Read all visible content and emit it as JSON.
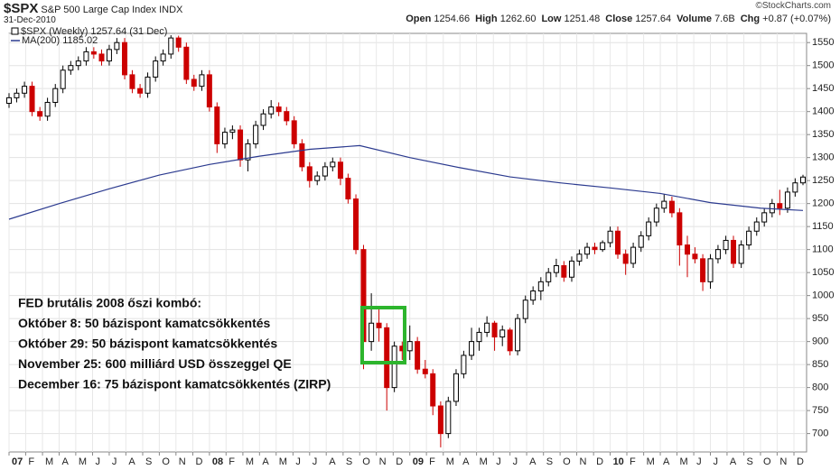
{
  "header": {
    "symbol": "$SPX",
    "name": "S&P 500 Large Cap Index",
    "exchange": "INDX",
    "date": "31-Dec-2010",
    "copyright": "©StockCharts.com",
    "quote": [
      {
        "label": "Open",
        "value": "1254.66"
      },
      {
        "label": "High",
        "value": "1262.60"
      },
      {
        "label": "Low",
        "value": "1251.48"
      },
      {
        "label": "Close",
        "value": "1257.64"
      },
      {
        "label": "Volume",
        "value": "7.6B"
      },
      {
        "label": "Chg",
        "value": "+0.87 (+0.07%)"
      }
    ]
  },
  "chart_data": {
    "type": "candlestick",
    "legend": [
      "$SPX (Weekly) 1257.64 (31 Dec)",
      "MA(200) 1185.02"
    ],
    "up_color": "#000000",
    "down_color": "#cc0000",
    "x": [
      2007,
      2007.038,
      2007.077,
      2007.115,
      2007.154,
      2007.192,
      2007.231,
      2007.269,
      2007.308,
      2007.346,
      2007.385,
      2007.423,
      2007.462,
      2007.5,
      2007.538,
      2007.577,
      2007.615,
      2007.654,
      2007.692,
      2007.731,
      2007.769,
      2007.808,
      2007.846,
      2007.885,
      2007.923,
      2007.962,
      2008,
      2008.038,
      2008.077,
      2008.115,
      2008.154,
      2008.192,
      2008.231,
      2008.269,
      2008.308,
      2008.346,
      2008.385,
      2008.423,
      2008.462,
      2008.5,
      2008.538,
      2008.577,
      2008.615,
      2008.654,
      2008.692,
      2008.731,
      2008.769,
      2008.808,
      2008.846,
      2008.885,
      2008.923,
      2008.962,
      2009,
      2009.038,
      2009.077,
      2009.115,
      2009.154,
      2009.192,
      2009.231,
      2009.269,
      2009.308,
      2009.346,
      2009.385,
      2009.423,
      2009.462,
      2009.5,
      2009.538,
      2009.577,
      2009.615,
      2009.654,
      2009.692,
      2009.731,
      2009.769,
      2009.808,
      2009.846,
      2009.885,
      2009.923,
      2009.962,
      2010,
      2010.038,
      2010.077,
      2010.115,
      2010.154,
      2010.192,
      2010.231,
      2010.269,
      2010.308,
      2010.346,
      2010.385,
      2010.423,
      2010.462,
      2010.5,
      2010.538,
      2010.577,
      2010.615,
      2010.654,
      2010.692,
      2010.731,
      2010.769,
      2010.808,
      2010.846,
      2010.885,
      2010.923,
      2010.962
    ],
    "open": [
      1418,
      1430,
      1440,
      1455,
      1400,
      1390,
      1420,
      1450,
      1490,
      1500,
      1510,
      1530,
      1525,
      1510,
      1535,
      1550,
      1480,
      1450,
      1440,
      1475,
      1510,
      1525,
      1560,
      1540,
      1470,
      1455,
      1480,
      1410,
      1330,
      1355,
      1360,
      1295,
      1330,
      1370,
      1395,
      1410,
      1400,
      1380,
      1330,
      1280,
      1250,
      1260,
      1280,
      1290,
      1255,
      1210,
      1100,
      900,
      940,
      930,
      800,
      890,
      880,
      900,
      840,
      830,
      760,
      700,
      770,
      830,
      870,
      900,
      920,
      940,
      910,
      925,
      880,
      950,
      990,
      1010,
      1030,
      1050,
      1065,
      1040,
      1075,
      1090,
      1105,
      1100,
      1115,
      1140,
      1090,
      1070,
      1105,
      1130,
      1160,
      1190,
      1205,
      1180,
      1110,
      1090,
      1080,
      1030,
      1080,
      1100,
      1120,
      1070,
      1110,
      1140,
      1160,
      1180,
      1200,
      1190,
      1225,
      1245
    ],
    "high": [
      1440,
      1450,
      1465,
      1465,
      1410,
      1430,
      1460,
      1500,
      1510,
      1520,
      1540,
      1540,
      1535,
      1545,
      1560,
      1560,
      1490,
      1460,
      1485,
      1520,
      1535,
      1566,
      1565,
      1550,
      1480,
      1490,
      1490,
      1420,
      1365,
      1370,
      1370,
      1340,
      1380,
      1405,
      1425,
      1420,
      1410,
      1390,
      1340,
      1290,
      1270,
      1290,
      1300,
      1300,
      1265,
      1220,
      1110,
      1005,
      970,
      940,
      900,
      900,
      935,
      910,
      860,
      840,
      770,
      780,
      840,
      880,
      930,
      930,
      955,
      945,
      935,
      930,
      960,
      1000,
      1020,
      1040,
      1060,
      1080,
      1075,
      1085,
      1100,
      1115,
      1115,
      1120,
      1150,
      1150,
      1100,
      1115,
      1140,
      1170,
      1200,
      1220,
      1215,
      1190,
      1130,
      1105,
      1090,
      1090,
      1110,
      1130,
      1130,
      1120,
      1150,
      1170,
      1190,
      1210,
      1230,
      1235,
      1255,
      1262.6
    ],
    "low": [
      1408,
      1420,
      1430,
      1390,
      1380,
      1380,
      1410,
      1440,
      1480,
      1490,
      1500,
      1515,
      1500,
      1500,
      1525,
      1470,
      1440,
      1430,
      1430,
      1465,
      1500,
      1515,
      1530,
      1460,
      1445,
      1445,
      1400,
      1310,
      1320,
      1340,
      1280,
      1270,
      1320,
      1360,
      1385,
      1390,
      1370,
      1320,
      1270,
      1235,
      1240,
      1250,
      1270,
      1240,
      1200,
      1090,
      840,
      880,
      900,
      750,
      790,
      860,
      860,
      830,
      820,
      740,
      670,
      690,
      760,
      820,
      860,
      880,
      910,
      880,
      890,
      870,
      870,
      940,
      980,
      990,
      1020,
      1040,
      1030,
      1030,
      1065,
      1080,
      1090,
      1095,
      1105,
      1080,
      1045,
      1060,
      1095,
      1120,
      1150,
      1180,
      1170,
      1065,
      1040,
      1070,
      1010,
      1015,
      1070,
      1090,
      1060,
      1060,
      1100,
      1130,
      1150,
      1170,
      1175,
      1180,
      1215,
      1240
    ],
    "close": [
      1430,
      1440,
      1455,
      1400,
      1390,
      1420,
      1450,
      1490,
      1500,
      1510,
      1530,
      1525,
      1510,
      1535,
      1550,
      1480,
      1450,
      1440,
      1475,
      1510,
      1525,
      1560,
      1540,
      1470,
      1455,
      1480,
      1410,
      1330,
      1355,
      1360,
      1295,
      1330,
      1370,
      1395,
      1410,
      1400,
      1380,
      1330,
      1280,
      1250,
      1260,
      1280,
      1290,
      1255,
      1210,
      1100,
      900,
      940,
      930,
      800,
      890,
      880,
      900,
      840,
      830,
      760,
      700,
      770,
      830,
      870,
      900,
      920,
      940,
      910,
      925,
      880,
      950,
      990,
      1010,
      1030,
      1050,
      1065,
      1040,
      1075,
      1090,
      1105,
      1100,
      1115,
      1140,
      1090,
      1070,
      1105,
      1130,
      1160,
      1190,
      1205,
      1180,
      1110,
      1090,
      1080,
      1030,
      1080,
      1100,
      1120,
      1070,
      1110,
      1140,
      1160,
      1180,
      1200,
      1190,
      1225,
      1245,
      1257.64
    ],
    "ma": {
      "color": "#2b3a8f",
      "x": [
        2007,
        2007.25,
        2007.5,
        2007.75,
        2008,
        2008.25,
        2008.5,
        2008.75,
        2009,
        2009.25,
        2009.5,
        2009.75,
        2010,
        2010.25,
        2010.5,
        2010.75,
        2010.962
      ],
      "values": [
        1166,
        1200,
        1232,
        1262,
        1285,
        1303,
        1318,
        1326,
        1300,
        1278,
        1258,
        1245,
        1234,
        1222,
        1202,
        1190,
        1185.02
      ]
    },
    "xlim": [
      2007,
      2010.98
    ],
    "ylim": [
      660,
      1570
    ],
    "yticks": [
      700,
      750,
      800,
      850,
      900,
      950,
      1000,
      1050,
      1100,
      1150,
      1200,
      1250,
      1300,
      1350,
      1400,
      1450,
      1500,
      1550
    ],
    "xticks": [
      {
        "value": 2007,
        "label": "07"
      },
      {
        "value": 2007.083,
        "label": "F"
      },
      {
        "value": 2007.167,
        "label": "M"
      },
      {
        "value": 2007.25,
        "label": "A"
      },
      {
        "value": 2007.333,
        "label": "M"
      },
      {
        "value": 2007.417,
        "label": "J"
      },
      {
        "value": 2007.5,
        "label": "J"
      },
      {
        "value": 2007.583,
        "label": "A"
      },
      {
        "value": 2007.667,
        "label": "S"
      },
      {
        "value": 2007.75,
        "label": "O"
      },
      {
        "value": 2007.833,
        "label": "N"
      },
      {
        "value": 2007.917,
        "label": "D"
      },
      {
        "value": 2008,
        "label": "08"
      },
      {
        "value": 2008.083,
        "label": "F"
      },
      {
        "value": 2008.167,
        "label": "M"
      },
      {
        "value": 2008.25,
        "label": "A"
      },
      {
        "value": 2008.333,
        "label": "M"
      },
      {
        "value": 2008.417,
        "label": "J"
      },
      {
        "value": 2008.5,
        "label": "J"
      },
      {
        "value": 2008.583,
        "label": "A"
      },
      {
        "value": 2008.667,
        "label": "S"
      },
      {
        "value": 2008.75,
        "label": "O"
      },
      {
        "value": 2008.833,
        "label": "N"
      },
      {
        "value": 2008.917,
        "label": "D"
      },
      {
        "value": 2009,
        "label": "09"
      },
      {
        "value": 2009.083,
        "label": "F"
      },
      {
        "value": 2009.167,
        "label": "M"
      },
      {
        "value": 2009.25,
        "label": "A"
      },
      {
        "value": 2009.333,
        "label": "M"
      },
      {
        "value": 2009.417,
        "label": "J"
      },
      {
        "value": 2009.5,
        "label": "J"
      },
      {
        "value": 2009.583,
        "label": "A"
      },
      {
        "value": 2009.667,
        "label": "S"
      },
      {
        "value": 2009.75,
        "label": "O"
      },
      {
        "value": 2009.833,
        "label": "N"
      },
      {
        "value": 2009.917,
        "label": "D"
      },
      {
        "value": 2010,
        "label": "10"
      },
      {
        "value": 2010.083,
        "label": "F"
      },
      {
        "value": 2010.167,
        "label": "M"
      },
      {
        "value": 2010.25,
        "label": "A"
      },
      {
        "value": 2010.333,
        "label": "M"
      },
      {
        "value": 2010.417,
        "label": "J"
      },
      {
        "value": 2010.5,
        "label": "J"
      },
      {
        "value": 2010.583,
        "label": "A"
      },
      {
        "value": 2010.667,
        "label": "S"
      },
      {
        "value": 2010.75,
        "label": "O"
      },
      {
        "value": 2010.833,
        "label": "N"
      },
      {
        "value": 2010.917,
        "label": "D"
      }
    ],
    "grid": true,
    "annotation": [
      "FED brutális 2008 őszi kombó:",
      "Október 8: 50 bázispont kamatcsökkentés",
      "Október 29: 50 bázispont kamatcsökkentés",
      "November 25: 600 milliárd USD összeggel QE",
      "December 16: 75 bázispont kamatcsökkentés (ZIRP)"
    ]
  }
}
